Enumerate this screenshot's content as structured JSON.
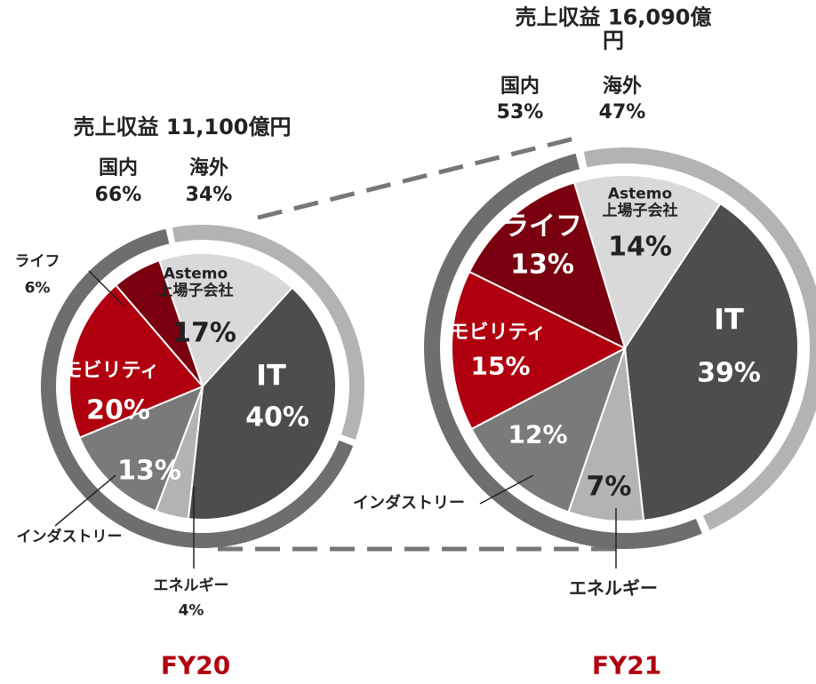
{
  "chart_data": [
    {
      "type": "pie",
      "title": "売上収益 11,100億円",
      "label": "FY20",
      "categories": [
        "Astemo\n上場子会社",
        "IT",
        "エネルギー",
        "インダストリー",
        "モビリティ",
        "ライフ"
      ],
      "values": [
        17,
        40,
        4,
        13,
        20,
        6
      ],
      "value_labels": [
        "17%",
        "40%",
        "4%",
        "13%",
        "20%",
        "6%"
      ],
      "colors": [
        "#d9d9d9",
        "#4d4d4d",
        "#b3b3b3",
        "#7a7a7a",
        "#b0000f",
        "#7a0010"
      ],
      "ring": {
        "categories": [
          "国内",
          "海外"
        ],
        "values": [
          66,
          34
        ],
        "value_labels": [
          "66%",
          "34%"
        ],
        "colors": [
          "#6e6e6e",
          "#b3b3b3"
        ]
      }
    },
    {
      "type": "pie",
      "title": "売上収益 16,090億円",
      "label": "FY21",
      "categories": [
        "Astemo\n上場子会社",
        "IT",
        "エネルギー",
        "インダストリー",
        "モビリティ",
        "ライフ"
      ],
      "values": [
        14,
        39,
        7,
        12,
        15,
        13
      ],
      "value_labels": [
        "14%",
        "39%",
        "7%",
        "12%",
        "15%",
        "13%"
      ],
      "colors": [
        "#d9d9d9",
        "#4d4d4d",
        "#b3b3b3",
        "#7a7a7a",
        "#b0000f",
        "#7a0010"
      ],
      "ring": {
        "categories": [
          "国内",
          "海外"
        ],
        "values": [
          53,
          47
        ],
        "value_labels": [
          "53%",
          "47%"
        ],
        "colors": [
          "#6e6e6e",
          "#b3b3b3"
        ]
      }
    }
  ]
}
